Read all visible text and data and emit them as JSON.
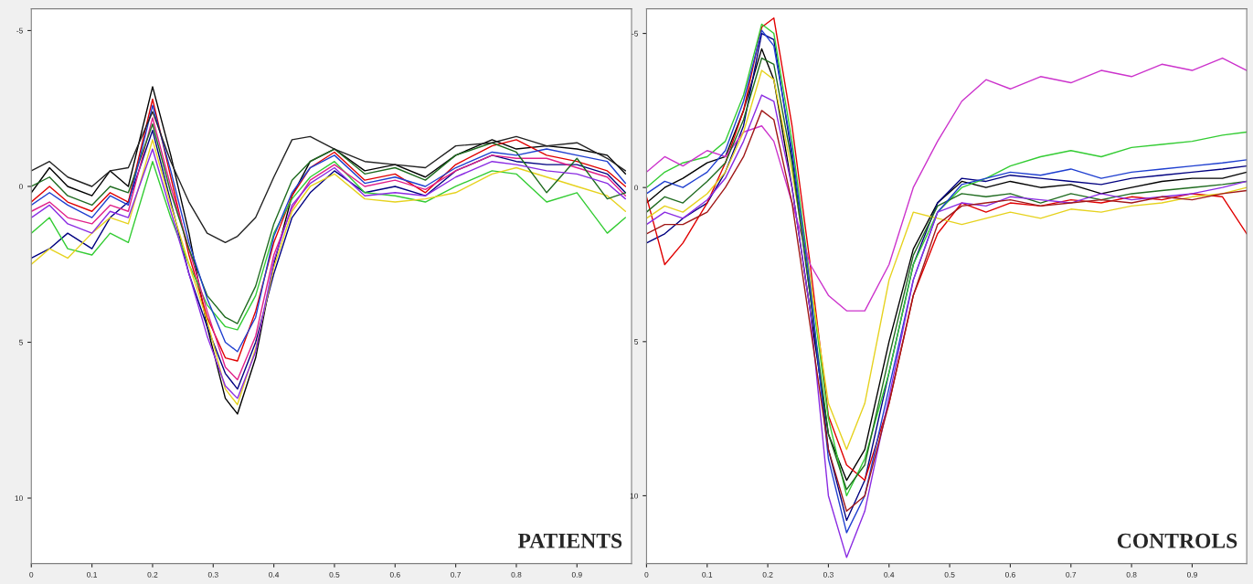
{
  "chart_data": [
    {
      "type": "line",
      "annotations": [
        "PATIENTS"
      ],
      "grid": false,
      "legend": false,
      "xlim": [
        0,
        0.99
      ],
      "ylim": [
        12.1,
        -5.7
      ],
      "xticks": [
        0,
        0.1,
        0.2,
        0.3,
        0.4,
        0.5,
        0.6,
        0.7,
        0.8,
        0.9
      ],
      "yticks": [
        -5,
        0,
        5,
        10
      ],
      "x": [
        0,
        0.03,
        0.06,
        0.1,
        0.13,
        0.16,
        0.2,
        0.23,
        0.26,
        0.29,
        0.32,
        0.34,
        0.37,
        0.4,
        0.43,
        0.46,
        0.5,
        0.55,
        0.6,
        0.65,
        0.7,
        0.76,
        0.8,
        0.85,
        0.9,
        0.95,
        0.98
      ],
      "series": [
        {
          "color": "#000000",
          "values": [
            0.2,
            -0.6,
            0.0,
            0.3,
            -0.5,
            0.0,
            -3.2,
            -1.0,
            1.5,
            4.5,
            6.8,
            7.3,
            5.5,
            2.5,
            0.3,
            -0.8,
            -1.2,
            -0.5,
            -0.7,
            -0.3,
            -1.0,
            -1.5,
            -1.2,
            -1.3,
            -1.2,
            -1.0,
            -0.4
          ]
        },
        {
          "color": "#000080",
          "values": [
            2.3,
            2.0,
            1.5,
            2.0,
            1.0,
            0.5,
            -1.8,
            0.5,
            2.8,
            4.5,
            6.0,
            6.5,
            5.0,
            2.8,
            1.0,
            0.2,
            -0.5,
            0.2,
            0.0,
            0.3,
            -0.5,
            -1.0,
            -0.8,
            -0.7,
            -0.7,
            -0.4,
            0.2
          ]
        },
        {
          "color": "#e00000",
          "values": [
            0.5,
            0.0,
            0.5,
            0.8,
            0.2,
            0.5,
            -2.8,
            -0.3,
            2.2,
            4.2,
            5.5,
            5.6,
            4.0,
            1.8,
            0.3,
            -0.6,
            -1.1,
            -0.2,
            -0.4,
            0.2,
            -0.7,
            -1.3,
            -1.5,
            -1.0,
            -0.8,
            -0.5,
            0.0
          ]
        },
        {
          "color": "#33cc33",
          "values": [
            1.5,
            1.0,
            2.0,
            2.2,
            1.5,
            1.8,
            -0.8,
            1.0,
            2.5,
            3.8,
            4.5,
            4.6,
            3.5,
            1.5,
            0.4,
            -0.3,
            -0.8,
            0.2,
            0.3,
            0.5,
            0.0,
            -0.5,
            -0.4,
            0.5,
            0.2,
            1.5,
            1.0
          ]
        },
        {
          "color": "#e0208a",
          "values": [
            0.8,
            0.5,
            1.0,
            1.2,
            0.6,
            0.8,
            -2.2,
            0.0,
            2.0,
            4.0,
            5.8,
            6.2,
            4.8,
            2.2,
            0.7,
            -0.2,
            -0.7,
            0.0,
            -0.2,
            0.1,
            -0.5,
            -1.0,
            -0.9,
            -0.9,
            -0.6,
            -0.3,
            0.3
          ]
        },
        {
          "color": "#e6d21e",
          "values": [
            2.5,
            2.0,
            2.3,
            1.5,
            1.0,
            1.2,
            -1.5,
            0.6,
            2.5,
            4.3,
            6.5,
            7.0,
            5.2,
            2.6,
            0.8,
            0.0,
            -0.4,
            0.4,
            0.5,
            0.4,
            0.2,
            -0.4,
            -0.6,
            -0.3,
            0.0,
            0.3,
            0.8
          ]
        },
        {
          "color": "#1f6b1f",
          "values": [
            0.0,
            -0.3,
            0.3,
            0.6,
            0.0,
            0.2,
            -2.0,
            0.2,
            2.0,
            3.5,
            4.2,
            4.4,
            3.2,
            1.2,
            -0.2,
            -0.8,
            -1.2,
            -0.4,
            -0.6,
            -0.2,
            -1.0,
            -1.4,
            -1.1,
            0.2,
            -0.9,
            0.4,
            0.2
          ]
        },
        {
          "color": "#1f3fd0",
          "values": [
            0.6,
            0.2,
            0.6,
            1.0,
            0.3,
            0.6,
            -2.6,
            -0.5,
            1.8,
            3.6,
            5.0,
            5.3,
            4.2,
            1.6,
            0.2,
            -0.6,
            -1.0,
            -0.1,
            -0.3,
            0.0,
            -0.6,
            -1.1,
            -1.0,
            -1.2,
            -1.0,
            -0.8,
            -0.1
          ]
        },
        {
          "color": "#222222",
          "values": [
            -0.5,
            -0.8,
            -0.3,
            0.0,
            -0.5,
            -0.6,
            -2.4,
            -0.8,
            0.5,
            1.5,
            1.8,
            1.6,
            1.0,
            -0.3,
            -1.5,
            -1.6,
            -1.2,
            -0.8,
            -0.7,
            -0.6,
            -1.3,
            -1.4,
            -1.6,
            -1.3,
            -1.4,
            -0.9,
            -0.5
          ]
        },
        {
          "color": "#8a2be2",
          "values": [
            1.0,
            0.6,
            1.2,
            1.5,
            0.8,
            1.0,
            -1.2,
            0.8,
            2.8,
            4.8,
            6.4,
            6.8,
            5.3,
            2.4,
            0.6,
            -0.1,
            -0.6,
            0.3,
            0.2,
            0.3,
            -0.3,
            -0.8,
            -0.7,
            -0.5,
            -0.4,
            -0.1,
            0.4
          ]
        }
      ]
    },
    {
      "type": "line",
      "annotations": [
        "CONTROLS"
      ],
      "grid": false,
      "legend": false,
      "xlim": [
        0,
        0.99
      ],
      "ylim": [
        12.2,
        -5.8
      ],
      "xticks": [
        0,
        0.1,
        0.2,
        0.3,
        0.4,
        0.5,
        0.6,
        0.7,
        0.8,
        0.9
      ],
      "yticks": [
        -5,
        0,
        5,
        10
      ],
      "x": [
        0,
        0.03,
        0.06,
        0.1,
        0.13,
        0.16,
        0.19,
        0.21,
        0.24,
        0.27,
        0.3,
        0.33,
        0.36,
        0.4,
        0.44,
        0.48,
        0.52,
        0.56,
        0.6,
        0.65,
        0.7,
        0.75,
        0.8,
        0.85,
        0.9,
        0.95,
        0.99
      ],
      "series": [
        {
          "color": "#000000",
          "values": [
            0.5,
            0.0,
            -0.3,
            -0.8,
            -1.0,
            -2.5,
            -4.5,
            -3.5,
            0.0,
            4.0,
            8.0,
            9.5,
            8.5,
            5.0,
            2.0,
            0.5,
            -0.2,
            0.0,
            -0.2,
            0.0,
            -0.1,
            0.2,
            0.0,
            -0.2,
            -0.3,
            -0.3,
            -0.5
          ]
        },
        {
          "color": "#000080",
          "values": [
            1.8,
            1.5,
            1.0,
            0.5,
            -0.5,
            -2.0,
            -5.0,
            -4.8,
            -1.0,
            3.5,
            8.5,
            10.8,
            9.5,
            6.0,
            2.5,
            0.5,
            -0.3,
            -0.2,
            -0.4,
            -0.3,
            -0.2,
            -0.1,
            -0.3,
            -0.4,
            -0.5,
            -0.6,
            -0.7
          ]
        },
        {
          "color": "#e00000",
          "values": [
            0.3,
            2.5,
            1.8,
            0.5,
            -0.8,
            -2.5,
            -5.2,
            -5.5,
            -2.0,
            2.5,
            7.4,
            9.0,
            9.5,
            7.0,
            3.5,
            1.5,
            0.5,
            0.8,
            0.5,
            0.6,
            0.4,
            0.5,
            0.3,
            0.4,
            0.2,
            0.3,
            1.5
          ]
        },
        {
          "color": "#33cc33",
          "values": [
            0.0,
            -0.5,
            -0.8,
            -1.0,
            -1.5,
            -3.0,
            -5.3,
            -5.0,
            -1.5,
            3.0,
            7.5,
            10.0,
            8.8,
            6.0,
            2.5,
            0.8,
            0.0,
            -0.3,
            -0.7,
            -1.0,
            -1.2,
            -1.0,
            -1.3,
            -1.4,
            -1.5,
            -1.7,
            -1.8
          ]
        },
        {
          "color": "#cc33cc",
          "values": [
            -0.5,
            -1.0,
            -0.7,
            -1.2,
            -1.0,
            -1.8,
            -2.0,
            -1.5,
            0.5,
            2.5,
            3.5,
            4.0,
            4.0,
            2.5,
            0.0,
            -1.5,
            -2.8,
            -3.5,
            -3.2,
            -3.6,
            -3.4,
            -3.8,
            -3.6,
            -4.0,
            -3.8,
            -4.2,
            -3.8
          ]
        },
        {
          "color": "#e6d21e",
          "values": [
            1.0,
            0.6,
            0.8,
            0.2,
            -0.5,
            -1.8,
            -3.8,
            -3.5,
            -0.5,
            3.0,
            7.0,
            8.5,
            7.0,
            3.0,
            0.8,
            1.0,
            1.2,
            1.0,
            0.8,
            1.0,
            0.7,
            0.8,
            0.6,
            0.5,
            0.3,
            0.2,
            0.0
          ]
        },
        {
          "color": "#1f6b1f",
          "values": [
            0.8,
            0.3,
            0.5,
            -0.2,
            -0.8,
            -2.2,
            -4.2,
            -4.0,
            -0.8,
            3.5,
            8.0,
            9.8,
            9.0,
            5.5,
            2.2,
            0.6,
            0.2,
            0.3,
            0.2,
            0.5,
            0.2,
            0.4,
            0.2,
            0.1,
            0.0,
            -0.1,
            -0.2
          ]
        },
        {
          "color": "#1f3fd0",
          "values": [
            0.2,
            -0.2,
            0.0,
            -0.5,
            -1.2,
            -2.8,
            -5.1,
            -4.6,
            -1.2,
            3.2,
            8.8,
            11.2,
            10.0,
            6.5,
            3.0,
            0.8,
            -0.1,
            -0.3,
            -0.5,
            -0.4,
            -0.6,
            -0.3,
            -0.5,
            -0.6,
            -0.7,
            -0.8,
            -0.9
          ]
        },
        {
          "color": "#8a2be2",
          "values": [
            1.2,
            0.8,
            1.0,
            0.4,
            -0.3,
            -1.5,
            -3.0,
            -2.8,
            0.0,
            4.0,
            10.0,
            12.0,
            10.5,
            6.8,
            3.0,
            0.8,
            0.5,
            0.6,
            0.3,
            0.4,
            0.5,
            0.2,
            0.4,
            0.3,
            0.2,
            0.0,
            -0.2
          ]
        },
        {
          "color": "#a01818",
          "values": [
            1.5,
            1.2,
            1.2,
            0.8,
            0.0,
            -1.0,
            -2.5,
            -2.2,
            0.5,
            4.5,
            8.5,
            10.5,
            10.0,
            7.0,
            3.5,
            1.2,
            0.6,
            0.5,
            0.4,
            0.6,
            0.5,
            0.4,
            0.5,
            0.3,
            0.4,
            0.2,
            0.1
          ]
        }
      ]
    }
  ]
}
